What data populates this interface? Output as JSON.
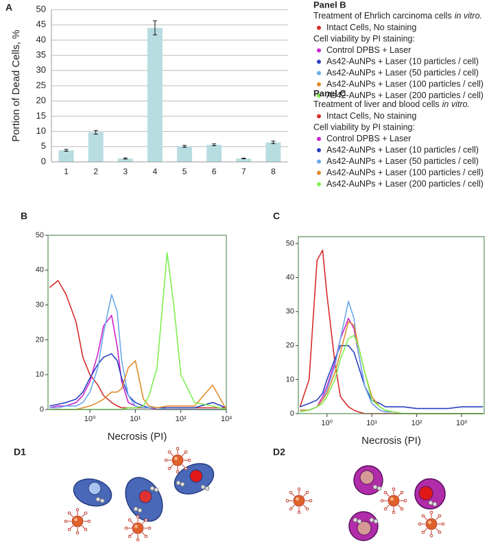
{
  "chart_data": [
    {
      "type": "bar",
      "panel_label": "A",
      "ylabel": "Portion of Dead Cells, %",
      "categories": [
        "1",
        "2",
        "3",
        "4",
        "5",
        "6",
        "7",
        "8"
      ],
      "values": [
        3.8,
        9.7,
        1.1,
        44,
        5.1,
        5.6,
        1.1,
        6.4
      ],
      "errors": [
        0.3,
        0.6,
        0.2,
        2.3,
        0.3,
        0.3,
        0.1,
        0.4
      ],
      "color": "#b7dde0",
      "ylim": [
        0,
        50
      ],
      "yticks": [
        0,
        5,
        10,
        15,
        20,
        25,
        30,
        35,
        40,
        45,
        50
      ],
      "grid": true
    },
    {
      "type": "line",
      "panel_label": "B",
      "xlabel": "Necrosis (PI)",
      "xscale": "log",
      "legend_heading": "Panel  B",
      "legend_caption": "Treatment of Ehrlich carcinoma cells",
      "legend_caption_italic": "in vitro.",
      "legend_group_label": "Cell viability by PI staining:",
      "xlim": [
        0.12,
        1000
      ],
      "ylim": [
        0,
        50
      ],
      "xticks": [
        {
          "value": 1,
          "label": "10⁰"
        },
        {
          "value": 10,
          "label": "10¹"
        },
        {
          "value": 100,
          "label": "10²"
        },
        {
          "value": 1000,
          "label": "10³"
        }
      ],
      "yticks": [
        0,
        10,
        20,
        30,
        40,
        50
      ],
      "x": [
        0.13,
        0.2,
        0.3,
        0.5,
        0.7,
        1,
        1.5,
        2,
        3,
        4,
        5,
        7,
        10,
        15,
        20,
        30,
        50,
        70,
        100,
        200,
        500,
        1000
      ],
      "series": [
        {
          "name": "Intact Cells, No staining",
          "color": "#d62a2a",
          "values": [
            35,
            37,
            33,
            25,
            15,
            10,
            7,
            4,
            2,
            1,
            0.5,
            0.5,
            0.5,
            0.5,
            0.5,
            0.5,
            0.5,
            0.5,
            0.5,
            0.5,
            0.5,
            0.5
          ]
        },
        {
          "name": "Control DPBS + Laser",
          "color": "#cc22cc",
          "values": [
            0.5,
            1,
            1,
            2,
            4,
            8,
            16,
            24,
            27,
            18,
            8,
            2,
            1,
            0.5,
            0.5,
            0,
            0,
            0,
            0,
            0,
            0,
            0
          ]
        },
        {
          "name": "As42-AuNPs + Laser (10 particles / cell)",
          "color": "#2a3fc0",
          "values": [
            1,
            1.5,
            2,
            3,
            5,
            9,
            13,
            15,
            16,
            14,
            9,
            4,
            2,
            1,
            0.5,
            0.5,
            0.5,
            0.5,
            0.5,
            0.5,
            2,
            0.5
          ]
        },
        {
          "name": "As42-AuNPs + Laser (50 particles / cell)",
          "color": "#6aa8e8",
          "values": [
            0.5,
            0.5,
            1,
            1,
            2,
            5,
            12,
            22,
            33,
            28,
            14,
            4,
            1,
            0.5,
            0.5,
            0.5,
            0,
            0,
            0,
            0,
            0,
            0
          ]
        },
        {
          "name": "As42-AuNPs + Laser (100 particles / cell)",
          "color": "#e08a2c",
          "values": [
            0,
            0,
            0,
            0,
            0.5,
            1,
            2,
            3,
            5,
            5,
            6,
            12,
            14,
            3,
            1,
            0.5,
            1,
            1,
            1,
            1,
            7,
            0
          ]
        },
        {
          "name": "As42-AuNPs + Laser (200 particles / cell)",
          "color": "#7cf050",
          "values": [
            0,
            0,
            0,
            0,
            0,
            0,
            0,
            0,
            0,
            0,
            0,
            0.5,
            0.5,
            1,
            4,
            12,
            45,
            30,
            10,
            2,
            1,
            0
          ]
        }
      ]
    },
    {
      "type": "line",
      "panel_label": "C",
      "xlabel": "Necrosis (PI)",
      "xscale": "log",
      "legend_heading": "Panel  C",
      "legend_caption": "Treatment of liver and blood cells",
      "legend_caption_italic": "in vitro.",
      "legend_group_label": "Cell viability by PI staining:",
      "xlim": [
        0.23,
        3200
      ],
      "ylim": [
        0,
        52
      ],
      "xticks": [
        {
          "value": 1,
          "label": "10⁰"
        },
        {
          "value": 10,
          "label": "10¹"
        },
        {
          "value": 100,
          "label": "10²"
        },
        {
          "value": 1000,
          "label": "10³"
        }
      ],
      "yticks": [
        0,
        10,
        20,
        30,
        40,
        50
      ],
      "x": [
        0.25,
        0.4,
        0.6,
        0.8,
        1,
        1.5,
        2,
        3,
        4,
        5,
        7,
        10,
        15,
        20,
        30,
        50,
        100,
        200,
        500,
        1000,
        2000,
        3000
      ],
      "series": [
        {
          "name": "Intact Cells, No staining",
          "color": "#d62a2a",
          "values": [
            2,
            10,
            45,
            48,
            35,
            15,
            5,
            2,
            1,
            0.5,
            0,
            0,
            0,
            0,
            0,
            0,
            0,
            0,
            0,
            0,
            0,
            0
          ]
        },
        {
          "name": "Control DPBS + Laser",
          "color": "#cc22cc",
          "values": [
            1,
            1,
            2,
            5,
            8,
            15,
            22,
            28,
            25,
            18,
            8,
            3,
            1,
            0.5,
            0.5,
            0,
            0,
            0,
            0,
            0,
            0,
            0
          ]
        },
        {
          "name": "As42-AuNPs + Laser (10 particles / cell)",
          "color": "#2a3fc0",
          "values": [
            2,
            3,
            4,
            6,
            10,
            16,
            20,
            20,
            18,
            14,
            8,
            4,
            3,
            2,
            2,
            2,
            1.5,
            1.5,
            1.5,
            2,
            2,
            2
          ]
        },
        {
          "name": "As42-AuNPs + Laser (50 particles / cell)",
          "color": "#6aa8e8",
          "values": [
            1,
            1,
            2,
            4,
            7,
            14,
            22,
            33,
            28,
            18,
            8,
            3,
            1,
            0.5,
            0.5,
            0,
            0,
            0,
            0,
            0,
            0,
            0
          ]
        },
        {
          "name": "As42-AuNPs + Laser (100 particles / cell)",
          "color": "#e08a2c",
          "values": [
            1,
            1,
            2,
            4,
            6,
            12,
            18,
            27,
            26,
            20,
            12,
            5,
            2,
            1,
            0.5,
            0,
            0,
            0,
            0,
            0,
            0,
            0
          ]
        },
        {
          "name": "As42-AuNPs + Laser (200 particles / cell)",
          "color": "#7cf050",
          "values": [
            0.5,
            1,
            2,
            3,
            5,
            10,
            16,
            22,
            23,
            20,
            12,
            4,
            2,
            1,
            0.5,
            0,
            0,
            0,
            0,
            0,
            0,
            0
          ]
        }
      ]
    }
  ],
  "illustrations": [
    {
      "label": "D1"
    },
    {
      "label": "D2"
    }
  ]
}
